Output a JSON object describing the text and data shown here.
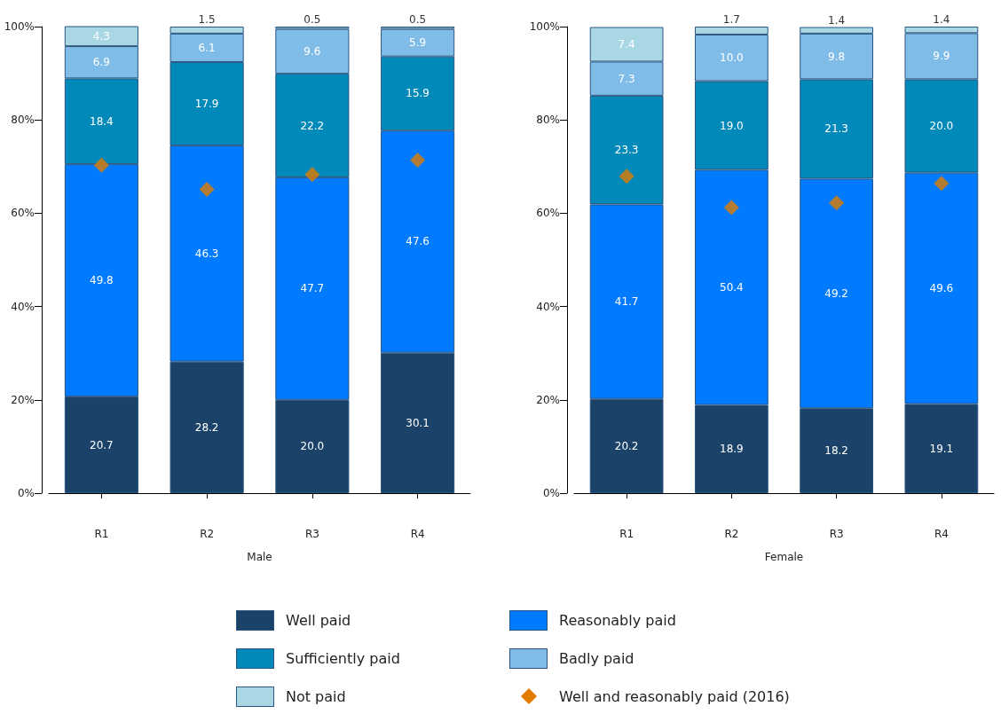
{
  "chart_data": [
    {
      "type": "bar",
      "xlabel": "Male",
      "stacked": true,
      "legend": "bottom",
      "grid": false,
      "categories": [
        "R1",
        "R2",
        "R3",
        "R4"
      ],
      "ylim": [
        0,
        100
      ],
      "yticks": [
        {
          "value": 0,
          "label": "0%"
        },
        {
          "value": 20,
          "label": "20%"
        },
        {
          "value": 40,
          "label": "40%"
        },
        {
          "value": 60,
          "label": "60%"
        },
        {
          "value": 80,
          "label": "80%"
        },
        {
          "value": 100,
          "label": "100%"
        }
      ],
      "series": [
        {
          "name": "Well paid",
          "color": "#1b4369",
          "values": [
            20.7,
            28.2,
            20.0,
            30.1
          ],
          "value_labels": [
            "20.7",
            "28.2",
            "20.0",
            "30.1"
          ]
        },
        {
          "name": "Reasonably paid",
          "color": "#007bff",
          "values": [
            49.8,
            46.3,
            47.7,
            47.6
          ],
          "value_labels": [
            "49.8",
            "46.3",
            "47.7",
            "47.6"
          ]
        },
        {
          "name": "Sufficiently paid",
          "color": "#0089b9",
          "values": [
            18.4,
            17.9,
            22.2,
            15.9
          ],
          "value_labels": [
            "18.4",
            "17.9",
            "22.2",
            "15.9"
          ]
        },
        {
          "name": "Badly paid",
          "color": "#80bce8",
          "values": [
            6.9,
            6.1,
            9.6,
            5.9
          ],
          "value_labels": [
            "6.9",
            "6.1",
            "9.6",
            "5.9"
          ]
        },
        {
          "name": "Not paid",
          "color": "#aad7e4",
          "values": [
            4.3,
            1.5,
            0.5,
            0.5
          ],
          "value_labels": [
            "4.3",
            "1.5",
            "0.5",
            "0.5"
          ]
        },
        {
          "name": "Well and reasonably paid (2016)",
          "type": "scatter",
          "marker": "diamond",
          "color": "#e17c00",
          "x": [
            "R1",
            "R2",
            "R3",
            "R4"
          ],
          "values": [
            70.3,
            65.1,
            68.3,
            71.4
          ]
        }
      ]
    },
    {
      "type": "bar",
      "xlabel": "Female",
      "stacked": true,
      "grid": false,
      "categories": [
        "R1",
        "R2",
        "R3",
        "R4"
      ],
      "ylim": [
        0,
        100
      ],
      "yticks": [
        {
          "value": 0,
          "label": "0%"
        },
        {
          "value": 20,
          "label": "20%"
        },
        {
          "value": 40,
          "label": "40%"
        },
        {
          "value": 60,
          "label": "60%"
        },
        {
          "value": 80,
          "label": "80%"
        },
        {
          "value": 100,
          "label": "100%"
        }
      ],
      "series": [
        {
          "color": "#1b4369",
          "values": [
            20.2,
            18.9,
            18.2,
            19.1
          ],
          "value_labels": [
            "20.2",
            "18.9",
            "18.2",
            "19.1"
          ]
        },
        {
          "color": "#007bff",
          "values": [
            41.7,
            50.4,
            49.2,
            49.6
          ],
          "value_labels": [
            "41.7",
            "50.4",
            "49.2",
            "49.6"
          ]
        },
        {
          "color": "#0089b9",
          "values": [
            23.3,
            19.0,
            21.3,
            20.0
          ],
          "value_labels": [
            "23.3",
            "19.0",
            "21.3",
            "20.0"
          ]
        },
        {
          "color": "#80bce8",
          "values": [
            7.3,
            10.0,
            9.8,
            9.9
          ],
          "value_labels": [
            "7.3",
            "10.0",
            "9.8",
            "9.9"
          ]
        },
        {
          "color": "#aad7e4",
          "values": [
            7.4,
            1.7,
            1.4,
            1.4
          ],
          "value_labels": [
            "7.4",
            "1.7",
            "1.4",
            "1.4"
          ]
        },
        {
          "type": "scatter",
          "marker": "diamond",
          "color": "#e17c00",
          "x": [
            "R1",
            "R2",
            "R3",
            "R4"
          ],
          "values": [
            67.9,
            61.2,
            62.2,
            66.4
          ]
        }
      ]
    }
  ]
}
